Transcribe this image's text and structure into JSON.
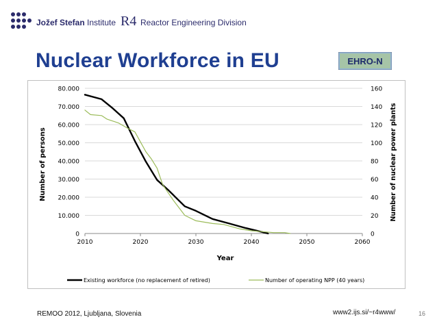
{
  "header": {
    "institute_bold": "Jožef Stefan",
    "institute_rest": " Institute",
    "division_mark": "R4",
    "division_name": "Reactor Engineering Division",
    "logo_right": "EHRO-N"
  },
  "slide": {
    "title": "Nuclear Workforce in EU"
  },
  "footer": {
    "event": "REMOO 2012, Ljubljana, Slovenia",
    "url": "www2.ijs.si/~r4www/",
    "page": "16"
  },
  "colors": {
    "title": "#1f3f91",
    "workforce_line": "#000000",
    "npp_line": "#9bbb59",
    "grid": "#d9d9d9"
  },
  "chart_data": {
    "type": "line",
    "xlabel": "Year",
    "ylabel": "Number of persons",
    "y2label": "Number of nuclear power plants",
    "xlim": [
      2010,
      2060
    ],
    "ylim": [
      0,
      80000
    ],
    "y2lim": [
      0,
      160
    ],
    "x_ticks": [
      "2010",
      "2020",
      "2030",
      "2040",
      "2050",
      "2060"
    ],
    "y_ticks": [
      "0",
      "10.000",
      "20.000",
      "30.000",
      "40.000",
      "50.000",
      "60.000",
      "70.000",
      "80.000"
    ],
    "y2_ticks": [
      "0",
      "20",
      "40",
      "60",
      "80",
      "100",
      "120",
      "140",
      "160"
    ],
    "grid": true,
    "legend_position": "bottom",
    "series": [
      {
        "name": "Existing workforce (no replacement of retired)",
        "axis": "left",
        "color": "#000000",
        "x": [
          2010,
          2013,
          2015,
          2017,
          2019,
          2021,
          2023,
          2025,
          2028,
          2030,
          2033,
          2036,
          2039,
          2042,
          2043
        ],
        "y": [
          76500,
          74000,
          69000,
          63500,
          51000,
          39500,
          29500,
          24000,
          15000,
          12500,
          8000,
          5500,
          3000,
          800,
          0
        ]
      },
      {
        "name": "Number of operating NPP (40 years)",
        "axis": "right",
        "color": "#9bbb59",
        "x": [
          2010,
          2011,
          2013,
          2014,
          2016,
          2018,
          2019,
          2021,
          2022,
          2023,
          2024,
          2025,
          2026,
          2028,
          2030,
          2033,
          2035,
          2038,
          2040,
          2042,
          2044,
          2046,
          2047
        ],
        "y": [
          136,
          131,
          130,
          126,
          122,
          115,
          112,
          90,
          82,
          72,
          54,
          45,
          36,
          20,
          14,
          11,
          10,
          5,
          3,
          2,
          1,
          1,
          0
        ]
      }
    ]
  }
}
